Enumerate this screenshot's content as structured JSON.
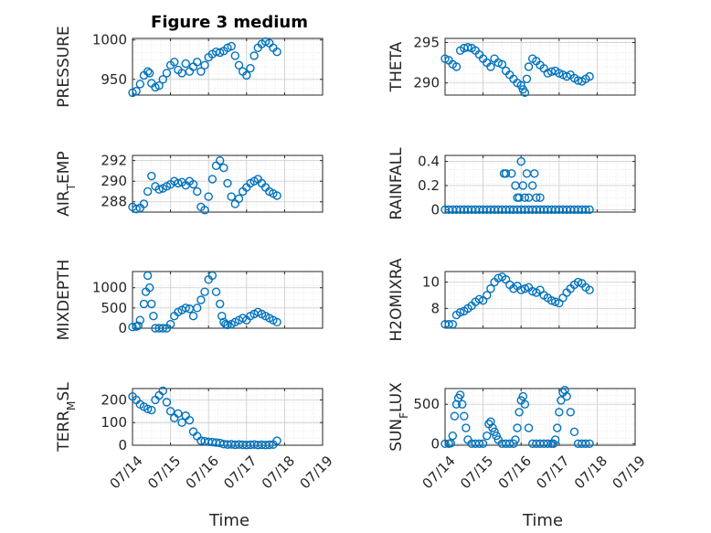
{
  "figure": {
    "title": "Figure 3 medium",
    "marker_color": "#0072BD",
    "grid_color": "#cccccc"
  },
  "x_axis": {
    "label": "Time",
    "ticks": [
      "07/14",
      "07/15",
      "07/16",
      "07/17",
      "07/18",
      "07/19"
    ],
    "range_days": [
      14,
      19
    ]
  },
  "chart_data": [
    {
      "type": "scatter",
      "marker": "circle-open",
      "ylabel": "PRESSURE",
      "ylim": [
        930,
        1002
      ],
      "yticks": [
        950,
        1000
      ],
      "ytick_labels": [
        "950",
        "1000"
      ],
      "x": [
        14.0,
        14.1,
        14.2,
        14.3,
        14.4,
        14.45,
        14.5,
        14.6,
        14.7,
        14.8,
        14.9,
        15.0,
        15.1,
        15.2,
        15.3,
        15.4,
        15.5,
        15.6,
        15.7,
        15.8,
        15.9,
        16.0,
        16.1,
        16.2,
        16.3,
        16.4,
        16.5,
        16.6,
        16.7,
        16.8,
        16.9,
        17.0,
        17.1,
        17.2,
        17.3,
        17.4,
        17.5,
        17.6,
        17.7,
        17.8
      ],
      "y": [
        933,
        935,
        944,
        955,
        960,
        958,
        945,
        940,
        942,
        950,
        958,
        968,
        972,
        962,
        958,
        970,
        960,
        966,
        972,
        960,
        968,
        978,
        982,
        985,
        984,
        986,
        990,
        992,
        980,
        968,
        960,
        955,
        964,
        980,
        990,
        995,
        998,
        996,
        990,
        985
      ]
    },
    {
      "type": "scatter",
      "marker": "circle-open",
      "ylabel": "THETA",
      "ylim": [
        288.5,
        295.5
      ],
      "yticks": [
        290,
        295
      ],
      "ytick_labels": [
        "290",
        "295"
      ],
      "x": [
        14.0,
        14.1,
        14.2,
        14.3,
        14.4,
        14.5,
        14.6,
        14.7,
        14.8,
        14.9,
        15.0,
        15.1,
        15.2,
        15.3,
        15.4,
        15.5,
        15.6,
        15.7,
        15.8,
        15.9,
        16.0,
        16.05,
        16.1,
        16.15,
        16.2,
        16.3,
        16.4,
        16.5,
        16.6,
        16.7,
        16.8,
        16.9,
        17.0,
        17.1,
        17.2,
        17.3,
        17.4,
        17.5,
        17.6,
        17.7,
        17.8
      ],
      "y": [
        293.0,
        292.8,
        292.3,
        292.0,
        294.0,
        294.3,
        294.4,
        294.3,
        294.0,
        293.5,
        293.0,
        292.5,
        292.0,
        293.0,
        292.5,
        292.3,
        291.5,
        291.0,
        290.5,
        290.0,
        289.7,
        289.2,
        288.8,
        290.5,
        292.0,
        293.0,
        292.7,
        292.2,
        291.8,
        291.2,
        291.4,
        291.5,
        291.2,
        291.0,
        290.8,
        291.0,
        290.6,
        290.3,
        290.2,
        290.5,
        290.8
      ]
    },
    {
      "type": "scatter",
      "marker": "circle-open",
      "ylabel": "AIR_TEMP",
      "ylim": [
        287.0,
        292.5
      ],
      "yticks": [
        288,
        290,
        292
      ],
      "ytick_labels": [
        "288",
        "290",
        "292"
      ],
      "x": [
        14.0,
        14.1,
        14.2,
        14.3,
        14.4,
        14.5,
        14.6,
        14.7,
        14.8,
        14.9,
        15.0,
        15.1,
        15.2,
        15.3,
        15.4,
        15.5,
        15.6,
        15.7,
        15.8,
        15.9,
        16.0,
        16.1,
        16.2,
        16.3,
        16.4,
        16.5,
        16.6,
        16.7,
        16.8,
        16.9,
        17.0,
        17.1,
        17.2,
        17.3,
        17.4,
        17.5,
        17.6,
        17.7,
        17.8
      ],
      "y": [
        287.5,
        287.3,
        287.4,
        287.8,
        289.0,
        290.5,
        289.5,
        289.2,
        289.3,
        289.5,
        289.7,
        290.0,
        289.8,
        289.9,
        289.6,
        290.0,
        289.7,
        289.0,
        287.5,
        287.2,
        288.5,
        290.2,
        291.5,
        292.0,
        291.3,
        289.8,
        288.5,
        287.8,
        288.3,
        289.0,
        289.4,
        289.8,
        290.0,
        290.2,
        289.8,
        289.4,
        289.0,
        288.8,
        288.6
      ]
    },
    {
      "type": "scatter",
      "marker": "circle-open",
      "ylabel": "RAINFALL",
      "ylim": [
        -0.02,
        0.45
      ],
      "yticks": [
        0,
        0.2,
        0.4
      ],
      "ytick_labels": [
        "0",
        "0.2",
        "0.4"
      ],
      "x": [
        14.0,
        14.1,
        14.2,
        14.3,
        14.4,
        14.5,
        14.6,
        14.7,
        14.8,
        14.9,
        15.0,
        15.1,
        15.2,
        15.3,
        15.4,
        15.5,
        15.6,
        15.7,
        15.8,
        15.9,
        16.0,
        16.1,
        16.2,
        16.3,
        16.4,
        16.5,
        16.6,
        16.7,
        16.8,
        16.9,
        17.0,
        17.1,
        17.2,
        17.3,
        17.4,
        17.5,
        17.6,
        17.7,
        17.8,
        15.55,
        15.6,
        15.75,
        15.85,
        15.9,
        15.95,
        16.0,
        16.05,
        16.1,
        16.15,
        16.2,
        16.3,
        16.35,
        16.4,
        16.5
      ],
      "y": [
        0,
        0,
        0,
        0,
        0,
        0,
        0,
        0,
        0,
        0,
        0,
        0,
        0,
        0,
        0,
        0,
        0,
        0,
        0,
        0,
        0,
        0,
        0,
        0,
        0,
        0,
        0,
        0,
        0,
        0,
        0,
        0,
        0,
        0,
        0,
        0,
        0,
        0,
        0,
        0.3,
        0.3,
        0.3,
        0.2,
        0.1,
        0.1,
        0.4,
        0.2,
        0.1,
        0.3,
        0.1,
        0.2,
        0.3,
        0.1,
        0.1
      ]
    },
    {
      "type": "scatter",
      "marker": "circle-open",
      "ylabel": "MIXDEPTH",
      "ylim": [
        0,
        1400
      ],
      "yticks": [
        0,
        500,
        1000
      ],
      "ytick_labels": [
        "0",
        "500",
        "1000"
      ],
      "x": [
        14.0,
        14.1,
        14.15,
        14.2,
        14.3,
        14.35,
        14.4,
        14.45,
        14.5,
        14.55,
        14.6,
        14.7,
        14.8,
        14.9,
        15.0,
        15.1,
        15.2,
        15.3,
        15.4,
        15.5,
        15.6,
        15.7,
        15.8,
        15.9,
        16.0,
        16.1,
        16.2,
        16.3,
        16.35,
        16.4,
        16.45,
        16.5,
        16.6,
        16.7,
        16.8,
        16.9,
        17.0,
        17.1,
        17.2,
        17.3,
        17.4,
        17.5,
        17.6,
        17.7,
        17.8
      ],
      "y": [
        30,
        40,
        60,
        200,
        600,
        900,
        1300,
        1000,
        600,
        300,
        0,
        0,
        0,
        0,
        100,
        300,
        400,
        450,
        500,
        480,
        300,
        500,
        700,
        900,
        1200,
        1300,
        900,
        600,
        300,
        150,
        100,
        80,
        100,
        150,
        200,
        250,
        200,
        300,
        350,
        400,
        350,
        300,
        250,
        200,
        150
      ]
    },
    {
      "type": "scatter",
      "marker": "circle-open",
      "ylabel": "H2OMIXRA",
      "ylim": [
        6.5,
        10.8
      ],
      "yticks": [
        8,
        10
      ],
      "ytick_labels": [
        "8",
        "10"
      ],
      "x": [
        14.0,
        14.1,
        14.2,
        14.3,
        14.4,
        14.5,
        14.6,
        14.7,
        14.8,
        14.9,
        15.0,
        15.1,
        15.2,
        15.3,
        15.4,
        15.5,
        15.6,
        15.7,
        15.8,
        15.9,
        16.0,
        16.1,
        16.2,
        16.3,
        16.4,
        16.5,
        16.6,
        16.7,
        16.8,
        16.9,
        17.0,
        17.1,
        17.2,
        17.3,
        17.4,
        17.5,
        17.6,
        17.7,
        17.8
      ],
      "y": [
        6.8,
        6.8,
        6.8,
        7.5,
        7.7,
        7.8,
        8.0,
        8.2,
        8.5,
        8.7,
        8.6,
        9.0,
        9.5,
        10.0,
        10.3,
        10.4,
        10.2,
        9.8,
        9.5,
        9.7,
        9.4,
        9.5,
        9.6,
        9.3,
        9.2,
        9.4,
        9.0,
        8.8,
        8.6,
        8.5,
        8.4,
        8.8,
        9.2,
        9.5,
        9.8,
        10.0,
        9.9,
        9.6,
        9.4
      ]
    },
    {
      "type": "scatter",
      "marker": "circle-open",
      "ylabel": "TERR_MSL",
      "ylim": [
        0,
        250
      ],
      "yticks": [
        0,
        100,
        200
      ],
      "ytick_labels": [
        "0",
        "100",
        "200"
      ],
      "x": [
        14.0,
        14.1,
        14.2,
        14.3,
        14.4,
        14.5,
        14.6,
        14.7,
        14.8,
        14.9,
        15.0,
        15.1,
        15.2,
        15.3,
        15.4,
        15.5,
        15.6,
        15.7,
        15.8,
        15.9,
        16.0,
        16.1,
        16.2,
        16.3,
        16.4,
        16.5,
        16.6,
        16.7,
        16.8,
        16.9,
        17.0,
        17.1,
        17.2,
        17.3,
        17.4,
        17.5,
        17.6,
        17.7,
        17.8
      ],
      "y": [
        215,
        200,
        180,
        170,
        160,
        155,
        200,
        220,
        240,
        190,
        150,
        120,
        140,
        100,
        130,
        110,
        60,
        40,
        20,
        18,
        15,
        14,
        12,
        10,
        5,
        3,
        4,
        2,
        3,
        2,
        1,
        2,
        3,
        1,
        2,
        1,
        2,
        3,
        20
      ]
    },
    {
      "type": "scatter",
      "marker": "circle-open",
      "ylabel": "SUN_FLUX",
      "ylim": [
        -20,
        700
      ],
      "yticks": [
        0,
        500
      ],
      "ytick_labels": [
        "0",
        "500"
      ],
      "x": [
        14.0,
        14.1,
        14.15,
        14.2,
        14.25,
        14.3,
        14.35,
        14.4,
        14.45,
        14.5,
        14.55,
        14.6,
        14.7,
        14.8,
        14.9,
        15.0,
        15.1,
        15.15,
        15.2,
        15.25,
        15.3,
        15.35,
        15.4,
        15.5,
        15.6,
        15.7,
        15.8,
        15.85,
        15.9,
        15.95,
        16.0,
        16.05,
        16.1,
        16.2,
        16.3,
        16.4,
        16.5,
        16.6,
        16.7,
        16.8,
        16.85,
        16.9,
        16.95,
        17.0,
        17.05,
        17.1,
        17.15,
        17.2,
        17.3,
        17.4,
        17.5,
        17.6,
        17.7,
        17.8
      ],
      "y": [
        0,
        0,
        5,
        100,
        350,
        500,
        580,
        620,
        500,
        350,
        200,
        50,
        0,
        0,
        0,
        0,
        100,
        250,
        280,
        200,
        150,
        100,
        50,
        0,
        0,
        0,
        0,
        50,
        200,
        400,
        550,
        600,
        500,
        200,
        0,
        0,
        0,
        0,
        0,
        0,
        0,
        50,
        200,
        400,
        550,
        650,
        680,
        600,
        400,
        150,
        0,
        0,
        0,
        0
      ]
    }
  ]
}
